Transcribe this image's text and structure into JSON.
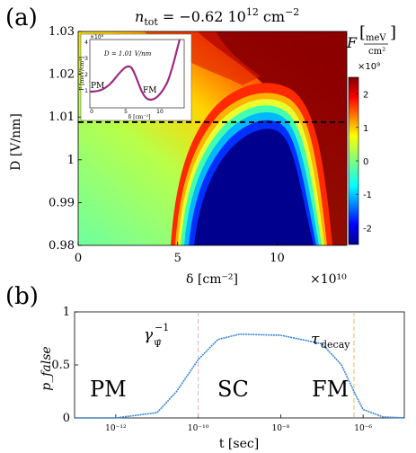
{
  "panel_a": {
    "label": "(a)",
    "title": "n_tot = −0.62 10^12 cm^−2",
    "title_main": "n",
    "title_sub": "tot",
    "title_rest": " = −0.62 10",
    "title_exp1": "12",
    "title_unit": " cm",
    "title_exp2": "−2",
    "colorbar_label": "F",
    "colorbar_unit_num": "meV",
    "colorbar_unit_den": "cm²",
    "colorbar_multiplier": "×10⁹",
    "colorbar_ticks": [
      "2",
      "1",
      "0",
      "-1",
      "-2"
    ],
    "xaxis_multiplier": "×10¹⁰",
    "inset": {
      "multiplier": "×10⁸",
      "title": "D = 1.01 V/nm",
      "ytick_labels": [
        "4",
        "3",
        "2",
        "1"
      ],
      "xtick_labels": [
        "0",
        "5",
        "10"
      ],
      "ylabel": "F [meV/cm²]",
      "xlabel": "δ [cm⁻²]",
      "pm_label": "PM",
      "fm_label": "FM",
      "curve_color": "#9b2b7e"
    }
  },
  "panel_b": {
    "label": "(b)",
    "pm_label": "PM",
    "sc_label": "SC",
    "fm_label": "FM",
    "gamma_label": "γ",
    "gamma_sub": "Ψ̂",
    "gamma_sup": "−1",
    "tau_label": "τ",
    "tau_sub": "decay",
    "curve_color": "#3a86d4",
    "gamma_line_color": "#f2a9b8",
    "tau_line_color": "#f2b36b"
  },
  "chart_data": [
    {
      "type": "heatmap",
      "xlabel": "δ [cm⁻²]",
      "ylabel": "D [V/nm]",
      "xlim": [
        0,
        13.5
      ],
      "ylim": [
        0.98,
        1.03
      ],
      "x_ticks": [
        0,
        5,
        10
      ],
      "y_ticks": [
        0.98,
        0.99,
        1,
        1.01,
        1.02,
        1.03
      ],
      "x_tick_labels": [
        "0",
        "5",
        "10"
      ],
      "y_tick_labels": [
        "0.98",
        "0.99",
        "1",
        "1.01",
        "1.02",
        "1.03"
      ],
      "colorbar_range": [
        -2.5,
        2.5
      ],
      "dashed_line_D": 1.0088,
      "dome_peak": {
        "delta": 9,
        "D": 1.01
      },
      "dome_edges_at_bottom": [
        5.5,
        12
      ]
    },
    {
      "type": "line",
      "xlabel": "t [sec]",
      "ylabel": "p_false",
      "xscale": "log",
      "xlim": [
        1e-13,
        1e-05
      ],
      "ylim": [
        0,
        1
      ],
      "x_tick_labels": [
        "10⁻¹²",
        "10⁻¹⁰",
        "10⁻⁸",
        "10⁻⁶"
      ],
      "y_tick_labels": [
        "0",
        "0.5",
        "1"
      ],
      "x": [
        1e-13,
        1e-12,
        1e-11,
        3e-11,
        1e-10,
        3e-10,
        1e-09,
        1e-08,
        1e-07,
        3e-07,
        6e-07,
        1e-06,
        3e-06,
        1e-05
      ],
      "y": [
        0.0,
        0.0,
        0.05,
        0.25,
        0.55,
        0.74,
        0.79,
        0.78,
        0.7,
        0.5,
        0.25,
        0.08,
        0.01,
        0.0
      ],
      "vlines": [
        {
          "x": 1e-10,
          "label": "gamma"
        },
        {
          "x": 6e-07,
          "label": "tau"
        }
      ]
    }
  ]
}
